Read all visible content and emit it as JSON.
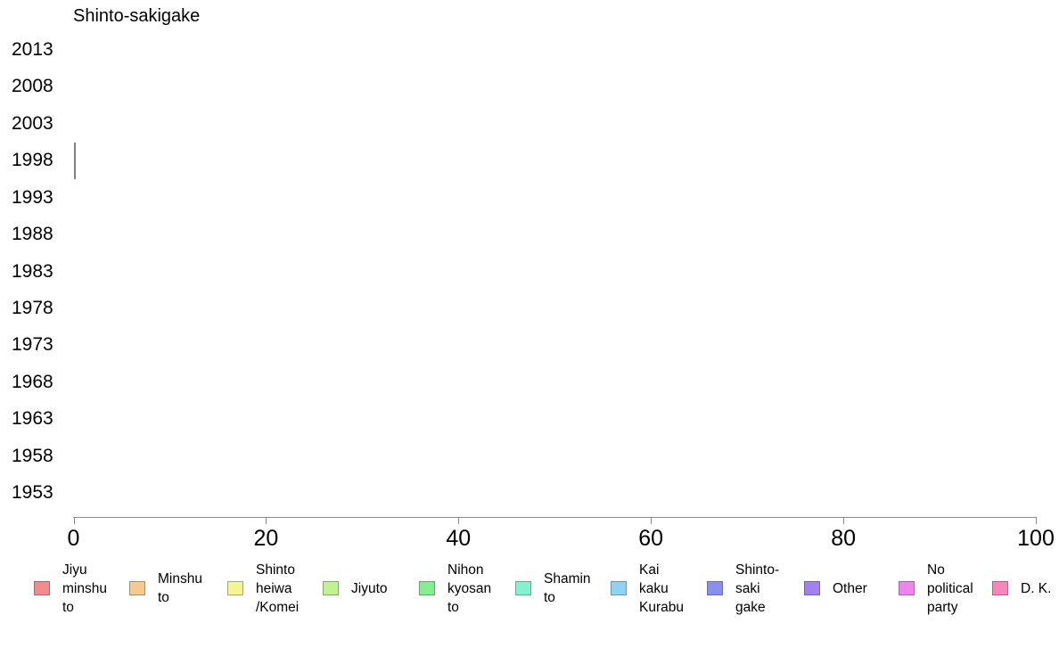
{
  "chart_data": {
    "type": "bar",
    "orientation": "horizontal",
    "title": "Shinto-sakigake",
    "categories": [
      "2013",
      "2008",
      "2003",
      "1998",
      "1993",
      "1988",
      "1983",
      "1978",
      "1973",
      "1968",
      "1963",
      "1958",
      "1953"
    ],
    "values": [
      0,
      0,
      0,
      0.2,
      0,
      0,
      0,
      0,
      0,
      0,
      0,
      0,
      0
    ],
    "xlabel": "",
    "ylabel": "",
    "xlim": [
      0,
      100
    ],
    "x_ticks": [
      "0",
      "20",
      "40",
      "60",
      "80",
      "100"
    ],
    "grid": false,
    "legend_position": "bottom",
    "bar_color": "#808080",
    "axis_color": "#8a8a8a",
    "legend": [
      {
        "label": "Jiyu minshu to",
        "lines": [
          "Jiyu",
          "minshu",
          "to"
        ],
        "color": "#F28B8B"
      },
      {
        "label": "Minshu to",
        "lines": [
          "Minshu",
          "to"
        ],
        "color": "#F6C98F"
      },
      {
        "label": "Shinto heiwa /Komei",
        "lines": [
          "Shinto",
          "heiwa",
          "/Komei"
        ],
        "color": "#F4F493"
      },
      {
        "label": "Jiyuto",
        "lines": [
          "Jiyuto"
        ],
        "color": "#BFF291"
      },
      {
        "label": "Nihon kyosan to",
        "lines": [
          "Nihon",
          "kyosan",
          "to"
        ],
        "color": "#86EE92"
      },
      {
        "label": "Shamin to",
        "lines": [
          "Shamin",
          "to"
        ],
        "color": "#83F2CF"
      },
      {
        "label": "Kai kaku Kurabu",
        "lines": [
          "Kai",
          "kaku",
          "Kurabu"
        ],
        "color": "#8FD3F2"
      },
      {
        "label": "Shinto-saki gake",
        "lines": [
          "Shinto-",
          "saki",
          "gake"
        ],
        "color": "#8A90F0"
      },
      {
        "label": "Other",
        "lines": [
          "Other"
        ],
        "color": "#9E82F0"
      },
      {
        "label": "No political party",
        "lines": [
          "No",
          "political",
          "party"
        ],
        "color": "#EE84EC"
      },
      {
        "label": "D. K.",
        "lines": [
          "D. K."
        ],
        "color": "#F687B8"
      }
    ]
  }
}
